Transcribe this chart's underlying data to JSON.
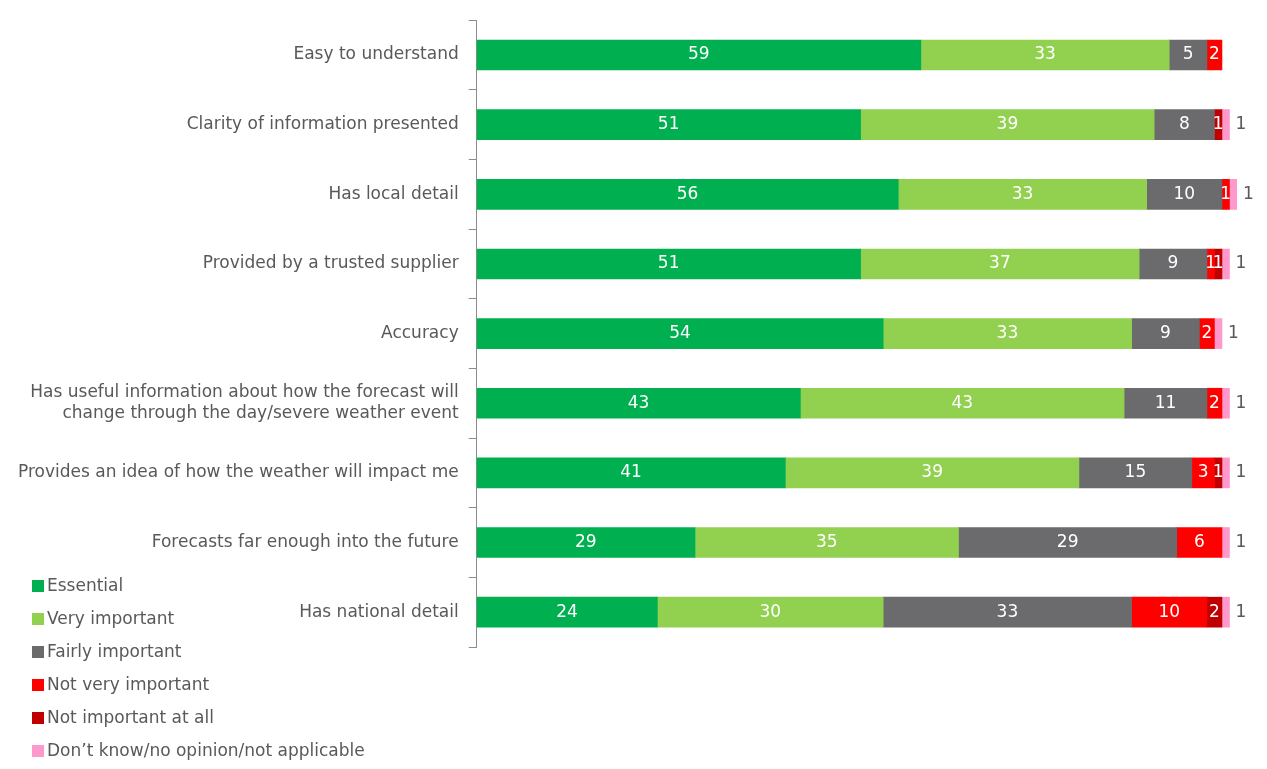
{
  "chart_data": {
    "type": "bar",
    "orientation": "horizontal",
    "stacked": true,
    "legend": "bottom left",
    "grid": false,
    "tick_labels": "y",
    "categories": [
      "Easy to understand",
      "Clarity of information presented",
      "Has local detail",
      "Provided by a trusted supplier",
      "Accuracy",
      "Has useful information about how the forecast will\nchange through the day/severe weather event",
      "Provides an idea of how the weather will impact me",
      "Forecasts far enough into the future",
      "Has national detail"
    ],
    "series": [
      {
        "name": "Essential",
        "color": "#00b050",
        "values": [
          59,
          51,
          56,
          51,
          54,
          43,
          41,
          29,
          24
        ],
        "value_labels": [
          "59",
          "51",
          "56",
          "51",
          "54",
          "43",
          "41",
          "29",
          "24"
        ]
      },
      {
        "name": "Very important",
        "color": "#92d050",
        "values": [
          33,
          39,
          33,
          37,
          33,
          43,
          39,
          35,
          30
        ],
        "value_labels": [
          "33",
          "39",
          "33",
          "37",
          "33",
          "43",
          "39",
          "35",
          "30"
        ]
      },
      {
        "name": "Fairly important",
        "color": "#6b6b6e",
        "values": [
          5,
          8,
          10,
          9,
          9,
          11,
          15,
          29,
          33
        ],
        "value_labels": [
          "5",
          "8",
          "10",
          "9",
          "9",
          "11",
          "15",
          "29",
          "33"
        ]
      },
      {
        "name": "Not very important",
        "color": "#ff0000",
        "values": [
          2,
          null,
          1,
          1,
          2,
          2,
          3,
          6,
          10
        ],
        "value_labels": [
          "2",
          null,
          "1",
          "1",
          "2",
          "2",
          "3",
          "6",
          "10"
        ]
      },
      {
        "name": "Not important at all",
        "color": "#c00000",
        "values": [
          null,
          1,
          null,
          1,
          null,
          null,
          1,
          null,
          2
        ],
        "value_labels": [
          null,
          "1",
          null,
          "1",
          null,
          null,
          "1",
          null,
          "2"
        ]
      },
      {
        "name": "Don’t know/no opinion/not applicable",
        "color": "#ff99cc",
        "values": [
          null,
          1,
          1,
          1,
          1,
          1,
          1,
          1,
          1
        ],
        "value_labels": [
          null,
          "1",
          "1",
          "1",
          "1",
          "1",
          "1",
          "1",
          "1"
        ]
      }
    ]
  }
}
